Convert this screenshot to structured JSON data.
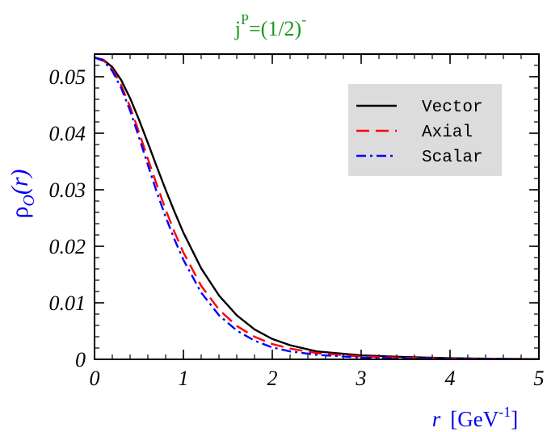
{
  "chart_data": {
    "type": "line",
    "title": {
      "base": "j",
      "sup1": "P",
      "mid": "=(1/2)",
      "sup2": "-"
    },
    "ylabel": {
      "rho": "ρ",
      "sub": "O",
      "arg": "(r)"
    },
    "xlabel": {
      "var": "r",
      "unit_base": "[GeV",
      "unit_sup": "-1",
      "unit_end": "]"
    },
    "xlim": [
      0,
      5
    ],
    "ylim": [
      0,
      0.054
    ],
    "x_ticks": [
      {
        "value": 0,
        "label": "0"
      },
      {
        "value": 1,
        "label": "1"
      },
      {
        "value": 2,
        "label": "2"
      },
      {
        "value": 3,
        "label": "3"
      },
      {
        "value": 4,
        "label": "4"
      },
      {
        "value": 5,
        "label": "5"
      }
    ],
    "y_ticks": [
      {
        "value": 0,
        "label": "0"
      },
      {
        "value": 0.01,
        "label": "0.01"
      },
      {
        "value": 0.02,
        "label": "0.02"
      },
      {
        "value": 0.03,
        "label": "0.03"
      },
      {
        "value": 0.04,
        "label": "0.04"
      },
      {
        "value": 0.05,
        "label": "0.05"
      }
    ],
    "x_minor_step": 0.2,
    "y_minor_step": 0.002,
    "grid": false,
    "legend": {
      "position": "top-right",
      "background": "#dcdcdc"
    },
    "x": [
      0,
      0.1,
      0.2,
      0.3,
      0.4,
      0.5,
      0.6,
      0.7,
      0.8,
      0.9,
      1.0,
      1.2,
      1.4,
      1.6,
      1.8,
      2.0,
      2.2,
      2.5,
      3.0,
      3.5,
      4.0,
      4.5,
      5.0
    ],
    "series": [
      {
        "name": "Vector",
        "color": "#000000",
        "dash": "solid",
        "values": [
          0.0534,
          0.053,
          0.0517,
          0.0494,
          0.0462,
          0.0424,
          0.0383,
          0.0341,
          0.03,
          0.0261,
          0.0224,
          0.0161,
          0.0113,
          0.0078,
          0.0053,
          0.0036,
          0.0025,
          0.0014,
          0.0007,
          0.0004,
          0.0002,
          0.0001,
          5e-05
        ]
      },
      {
        "name": "Axial",
        "color": "#ff0000",
        "dash": "dash",
        "values": [
          0.0534,
          0.0529,
          0.0513,
          0.0485,
          0.0447,
          0.0402,
          0.0355,
          0.0309,
          0.0265,
          0.0225,
          0.0189,
          0.013,
          0.0088,
          0.0059,
          0.004,
          0.0027,
          0.0019,
          0.0011,
          0.0005,
          0.00025,
          0.00012,
          6e-05,
          3e-05
        ]
      },
      {
        "name": "Scalar",
        "color": "#0000ff",
        "dash": "dashdot",
        "values": [
          0.0534,
          0.0528,
          0.051,
          0.048,
          0.044,
          0.0393,
          0.0344,
          0.0296,
          0.0252,
          0.0212,
          0.0176,
          0.0118,
          0.0078,
          0.0051,
          0.0033,
          0.0021,
          0.0014,
          0.0008,
          0.0003,
          0.00015,
          8e-05,
          4e-05,
          2e-05
        ]
      }
    ]
  }
}
